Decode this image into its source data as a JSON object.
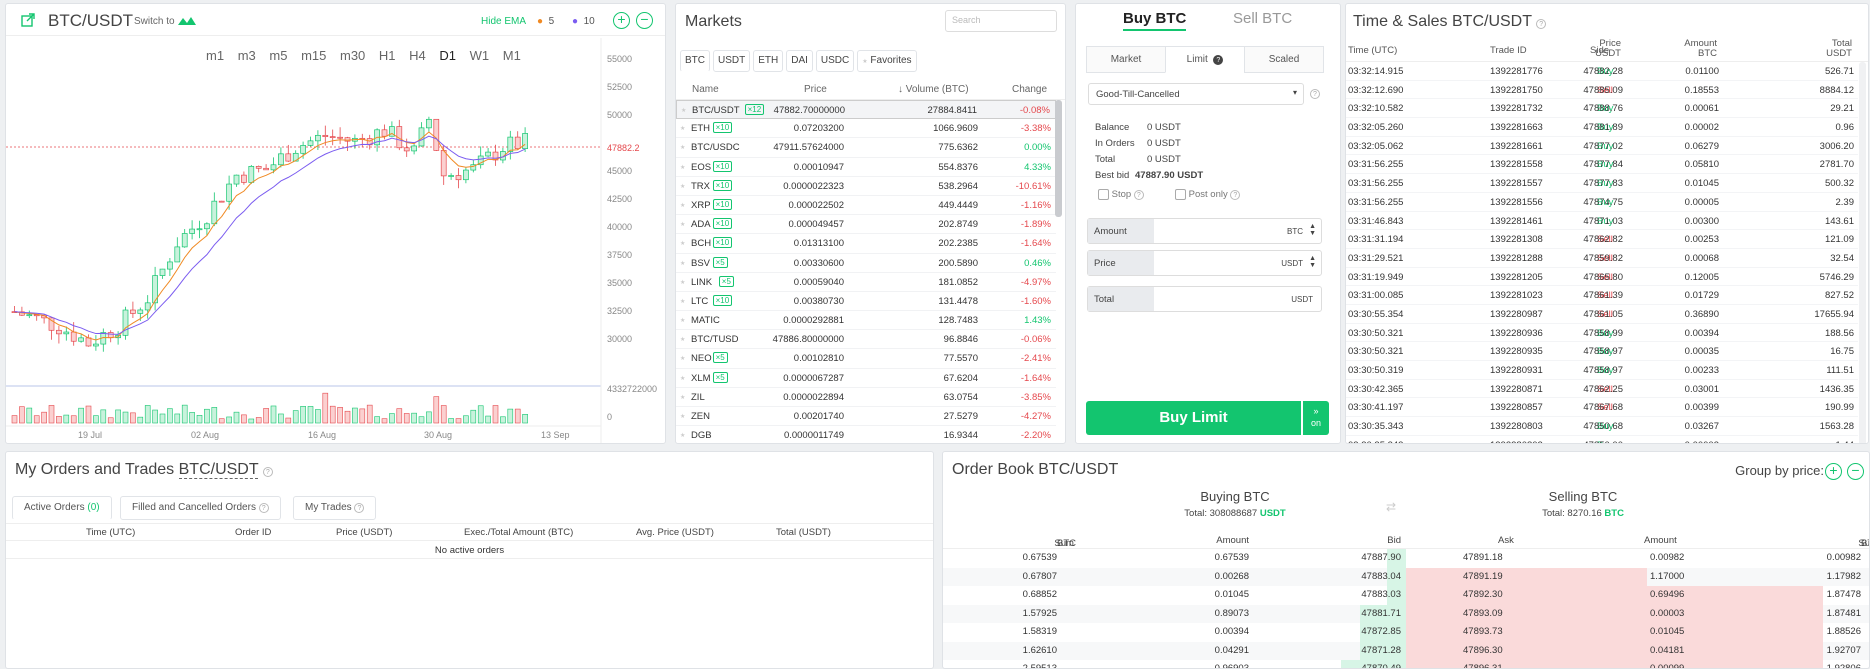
{
  "chart": {
    "pair": "BTC/USDT",
    "switch_to": "Switch to",
    "hide_ema": "Hide EMA",
    "ema1": "5",
    "ema2": "10",
    "ema1_color": "#f08a24",
    "ema2_color": "#7b5cf0",
    "timeframes": [
      "m1",
      "m3",
      "m5",
      "m15",
      "m30",
      "H1",
      "H4",
      "D1",
      "W1",
      "M1"
    ],
    "active_timeframe": "D1",
    "price_label": "47882.2",
    "y_ticks": [
      "55000",
      "52500",
      "50000",
      "47500",
      "45000",
      "42500",
      "40000",
      "37500",
      "35000",
      "32500",
      "30000"
    ],
    "volume_label": "4332722000",
    "volume_zero": "0",
    "x_ticks": [
      "19 Jul",
      "02 Aug",
      "16 Aug",
      "30 Aug",
      "13 Sep"
    ]
  },
  "markets": {
    "title": "Markets",
    "search_placeholder": "Search",
    "tabs": [
      "BTC",
      "USDT",
      "ETH",
      "DAI",
      "USDC",
      "Favorites"
    ],
    "col_name": "Name",
    "col_price": "Price",
    "col_volume": "Volume (BTC)",
    "col_change": "Change",
    "rows": [
      {
        "name": "BTC/USDT",
        "lev": "×12",
        "price": "47882.70000000",
        "volume": "27884.8411",
        "change": "-0.08%",
        "dir": "down"
      },
      {
        "name": "ETH",
        "lev": "×10",
        "price": "0.07203200",
        "volume": "1066.9609",
        "change": "-3.38%",
        "dir": "down"
      },
      {
        "name": "BTC/USDC",
        "lev": "",
        "price": "47911.57624000",
        "volume": "775.6362",
        "change": "0.00%",
        "dir": "up"
      },
      {
        "name": "EOS",
        "lev": "×10",
        "price": "0.00010947",
        "volume": "554.8376",
        "change": "4.33%",
        "dir": "up"
      },
      {
        "name": "TRX",
        "lev": "×10",
        "price": "0.0000022323",
        "volume": "538.2964",
        "change": "-10.61%",
        "dir": "down"
      },
      {
        "name": "XRP",
        "lev": "×10",
        "price": "0.000022502",
        "volume": "449.4449",
        "change": "-1.16%",
        "dir": "down"
      },
      {
        "name": "ADA",
        "lev": "×10",
        "price": "0.000049457",
        "volume": "202.8749",
        "change": "-1.89%",
        "dir": "down"
      },
      {
        "name": "BCH",
        "lev": "×10",
        "price": "0.01313100",
        "volume": "202.2385",
        "change": "-1.64%",
        "dir": "down"
      },
      {
        "name": "BSV",
        "lev": "×5",
        "price": "0.00330600",
        "volume": "200.5890",
        "change": "0.46%",
        "dir": "up"
      },
      {
        "name": "LINK",
        "lev": "×5",
        "price": "0.00059040",
        "volume": "181.0852",
        "change": "-4.97%",
        "dir": "down"
      },
      {
        "name": "LTC",
        "lev": "×10",
        "price": "0.00380730",
        "volume": "131.4478",
        "change": "-1.60%",
        "dir": "down"
      },
      {
        "name": "MATIC",
        "lev": "",
        "price": "0.0000292881",
        "volume": "128.7483",
        "change": "1.43%",
        "dir": "up"
      },
      {
        "name": "BTC/TUSD",
        "lev": "",
        "price": "47886.80000000",
        "volume": "96.8846",
        "change": "-0.06%",
        "dir": "down"
      },
      {
        "name": "NEO",
        "lev": "×5",
        "price": "0.00102810",
        "volume": "77.5570",
        "change": "-2.41%",
        "dir": "down"
      },
      {
        "name": "XLM",
        "lev": "×5",
        "price": "0.0000067287",
        "volume": "67.6204",
        "change": "-1.64%",
        "dir": "down"
      },
      {
        "name": "ZIL",
        "lev": "",
        "price": "0.0000022894",
        "volume": "63.0754",
        "change": "-3.85%",
        "dir": "down"
      },
      {
        "name": "ZEN",
        "lev": "",
        "price": "0.00201740",
        "volume": "27.5279",
        "change": "-4.27%",
        "dir": "down"
      },
      {
        "name": "DGB",
        "lev": "",
        "price": "0.0000011749",
        "volume": "16.9344",
        "change": "-2.20%",
        "dir": "down"
      }
    ]
  },
  "buy": {
    "tab_buy": "Buy BTC",
    "tab_sell": "Sell BTC",
    "types": [
      "Market",
      "Limit",
      "Scaled"
    ],
    "tif": "Good-Till-Cancelled",
    "balance_label": "Balance",
    "balance_value": "0 USDT",
    "in_orders_label": "In Orders",
    "in_orders_value": "0 USDT",
    "total_label": "Total",
    "total_value": "0 USDT",
    "best_bid_label": "Best bid",
    "best_bid_value": "47887.90 USDT",
    "stop_label": "Stop",
    "post_only_label": "Post only",
    "amount_label": "Amount",
    "amount_unit": "BTC",
    "price_label": "Price",
    "price_unit": "USDT",
    "total_field_label": "Total",
    "total_unit": "USDT",
    "button": "Buy Limit",
    "button_side": "on"
  },
  "ts": {
    "title": "Time & Sales BTC/USDT",
    "col_time": "Time (UTC)",
    "col_trade": "Trade ID",
    "col_side": "Side",
    "col_price": "Price",
    "col_price_unit": "USDT",
    "col_amount": "Amount",
    "col_amount_unit": "BTC",
    "col_total": "Total",
    "col_total_unit": "USDT",
    "rows": [
      {
        "time": "03:32:14.915",
        "id": "1392281776",
        "side": "Buy",
        "price": "47882.28",
        "amount": "0.01100",
        "total": "526.71"
      },
      {
        "time": "03:32:12.690",
        "id": "1392281750",
        "side": "Sell",
        "price": "47885.09",
        "amount": "0.18553",
        "total": "8884.12"
      },
      {
        "time": "03:32:10.582",
        "id": "1392281732",
        "side": "Buy",
        "price": "47888.76",
        "amount": "0.00061",
        "total": "29.21"
      },
      {
        "time": "03:32:05.260",
        "id": "1392281663",
        "side": "Buy",
        "price": "47881.89",
        "amount": "0.00002",
        "total": "0.96"
      },
      {
        "time": "03:32:05.062",
        "id": "1392281661",
        "side": "Buy",
        "price": "47877.02",
        "amount": "0.06279",
        "total": "3006.20"
      },
      {
        "time": "03:31:56.255",
        "id": "1392281558",
        "side": "Buy",
        "price": "47877.84",
        "amount": "0.05810",
        "total": "2781.70"
      },
      {
        "time": "03:31:56.255",
        "id": "1392281557",
        "side": "Buy",
        "price": "47877.83",
        "amount": "0.01045",
        "total": "500.32"
      },
      {
        "time": "03:31:56.255",
        "id": "1392281556",
        "side": "Buy",
        "price": "47874.75",
        "amount": "0.00005",
        "total": "2.39"
      },
      {
        "time": "03:31:46.843",
        "id": "1392281461",
        "side": "Buy",
        "price": "47871.03",
        "amount": "0.00300",
        "total": "143.61"
      },
      {
        "time": "03:31:31.194",
        "id": "1392281308",
        "side": "Sell",
        "price": "47862.82",
        "amount": "0.00253",
        "total": "121.09"
      },
      {
        "time": "03:31:29.521",
        "id": "1392281288",
        "side": "Sell",
        "price": "47859.82",
        "amount": "0.00068",
        "total": "32.54"
      },
      {
        "time": "03:31:19.949",
        "id": "1392281205",
        "side": "Sell",
        "price": "47865.80",
        "amount": "0.12005",
        "total": "5746.29"
      },
      {
        "time": "03:31:00.085",
        "id": "1392281023",
        "side": "Sell",
        "price": "47861.39",
        "amount": "0.01729",
        "total": "827.52"
      },
      {
        "time": "03:30:55.354",
        "id": "1392280987",
        "side": "Sell",
        "price": "47861.05",
        "amount": "0.36890",
        "total": "17655.94"
      },
      {
        "time": "03:30:50.321",
        "id": "1392280936",
        "side": "Buy",
        "price": "47858.99",
        "amount": "0.00394",
        "total": "188.56"
      },
      {
        "time": "03:30:50.321",
        "id": "1392280935",
        "side": "Buy",
        "price": "47858.97",
        "amount": "0.00035",
        "total": "16.75"
      },
      {
        "time": "03:30:50.319",
        "id": "1392280931",
        "side": "Buy",
        "price": "47858.97",
        "amount": "0.00233",
        "total": "111.51"
      },
      {
        "time": "03:30:42.365",
        "id": "1392280871",
        "side": "Sell",
        "price": "47862.25",
        "amount": "0.03001",
        "total": "1436.35"
      },
      {
        "time": "03:30:41.197",
        "id": "1392280857",
        "side": "Sell",
        "price": "47867.68",
        "amount": "0.00399",
        "total": "190.99"
      },
      {
        "time": "03:30:35.343",
        "id": "1392280803",
        "side": "Buy",
        "price": "47850.68",
        "amount": "0.03267",
        "total": "1563.28"
      },
      {
        "time": "03:30:35.343",
        "id": "1392280802",
        "side": "Buy",
        "price": "47850.00",
        "amount": "0.00003",
        "total": "1.44"
      }
    ]
  },
  "orders": {
    "title": "My Orders and Trades",
    "pair": "BTC/USDT",
    "tab_active": "Active Orders",
    "tab_active_count": "(0)",
    "tab_filled": "Filled and Cancelled Orders",
    "tab_trades": "My Trades",
    "cols": [
      "Time (UTC)",
      "Order ID",
      "Price (USDT)",
      "Exec./Total Amount (BTC)",
      "Avg. Price (USDT)",
      "Total (USDT)"
    ],
    "empty": "No active orders"
  },
  "orderbook": {
    "title": "Order Book BTC/USDT",
    "group_by": "Group by price:",
    "buying_title": "Buying BTC",
    "buying_total_label": "Total:",
    "buying_total": "308088687",
    "buying_unit": "USDT",
    "selling_title": "Selling BTC",
    "selling_total_label": "Total:",
    "selling_total": "8270.16",
    "selling_unit": "BTC",
    "col_sum": "Sum",
    "col_sum_unit": "BTC",
    "col_amount": "Amount",
    "col_bid": "Bid",
    "col_ask": "Ask",
    "rows": [
      {
        "bsum": "0.67539",
        "bamt": "0.67539",
        "bid": "47887.90",
        "ask": "47891.18",
        "aamt": "0.00982",
        "asum": "0.00982",
        "bbar": 2,
        "abar": 0
      },
      {
        "bsum": "0.67807",
        "bamt": "0.00268",
        "bid": "47883.04",
        "ask": "47891.19",
        "aamt": "1.17000",
        "asum": "1.17982",
        "bbar": 2,
        "abar": 26
      },
      {
        "bsum": "0.68852",
        "bamt": "0.01045",
        "bid": "47883.03",
        "ask": "47892.30",
        "aamt": "0.69496",
        "asum": "1.87478",
        "bbar": 2,
        "abar": 45
      },
      {
        "bsum": "1.57925",
        "bamt": "0.89073",
        "bid": "47881.71",
        "ask": "47893.09",
        "aamt": "0.00003",
        "asum": "1.87481",
        "bbar": 5,
        "abar": 45
      },
      {
        "bsum": "1.58319",
        "bamt": "0.00394",
        "bid": "47872.85",
        "ask": "47893.73",
        "aamt": "0.01045",
        "asum": "1.88526",
        "bbar": 5,
        "abar": 45
      },
      {
        "bsum": "1.62610",
        "bamt": "0.04291",
        "bid": "47871.28",
        "ask": "47896.30",
        "aamt": "0.04181",
        "asum": "1.92707",
        "bbar": 5,
        "abar": 45
      },
      {
        "bsum": "2.59513",
        "bamt": "0.96903",
        "bid": "47870.49",
        "ask": "47896.31",
        "aamt": "0.00099",
        "asum": "1.92806",
        "bbar": 7,
        "abar": 45
      }
    ]
  }
}
